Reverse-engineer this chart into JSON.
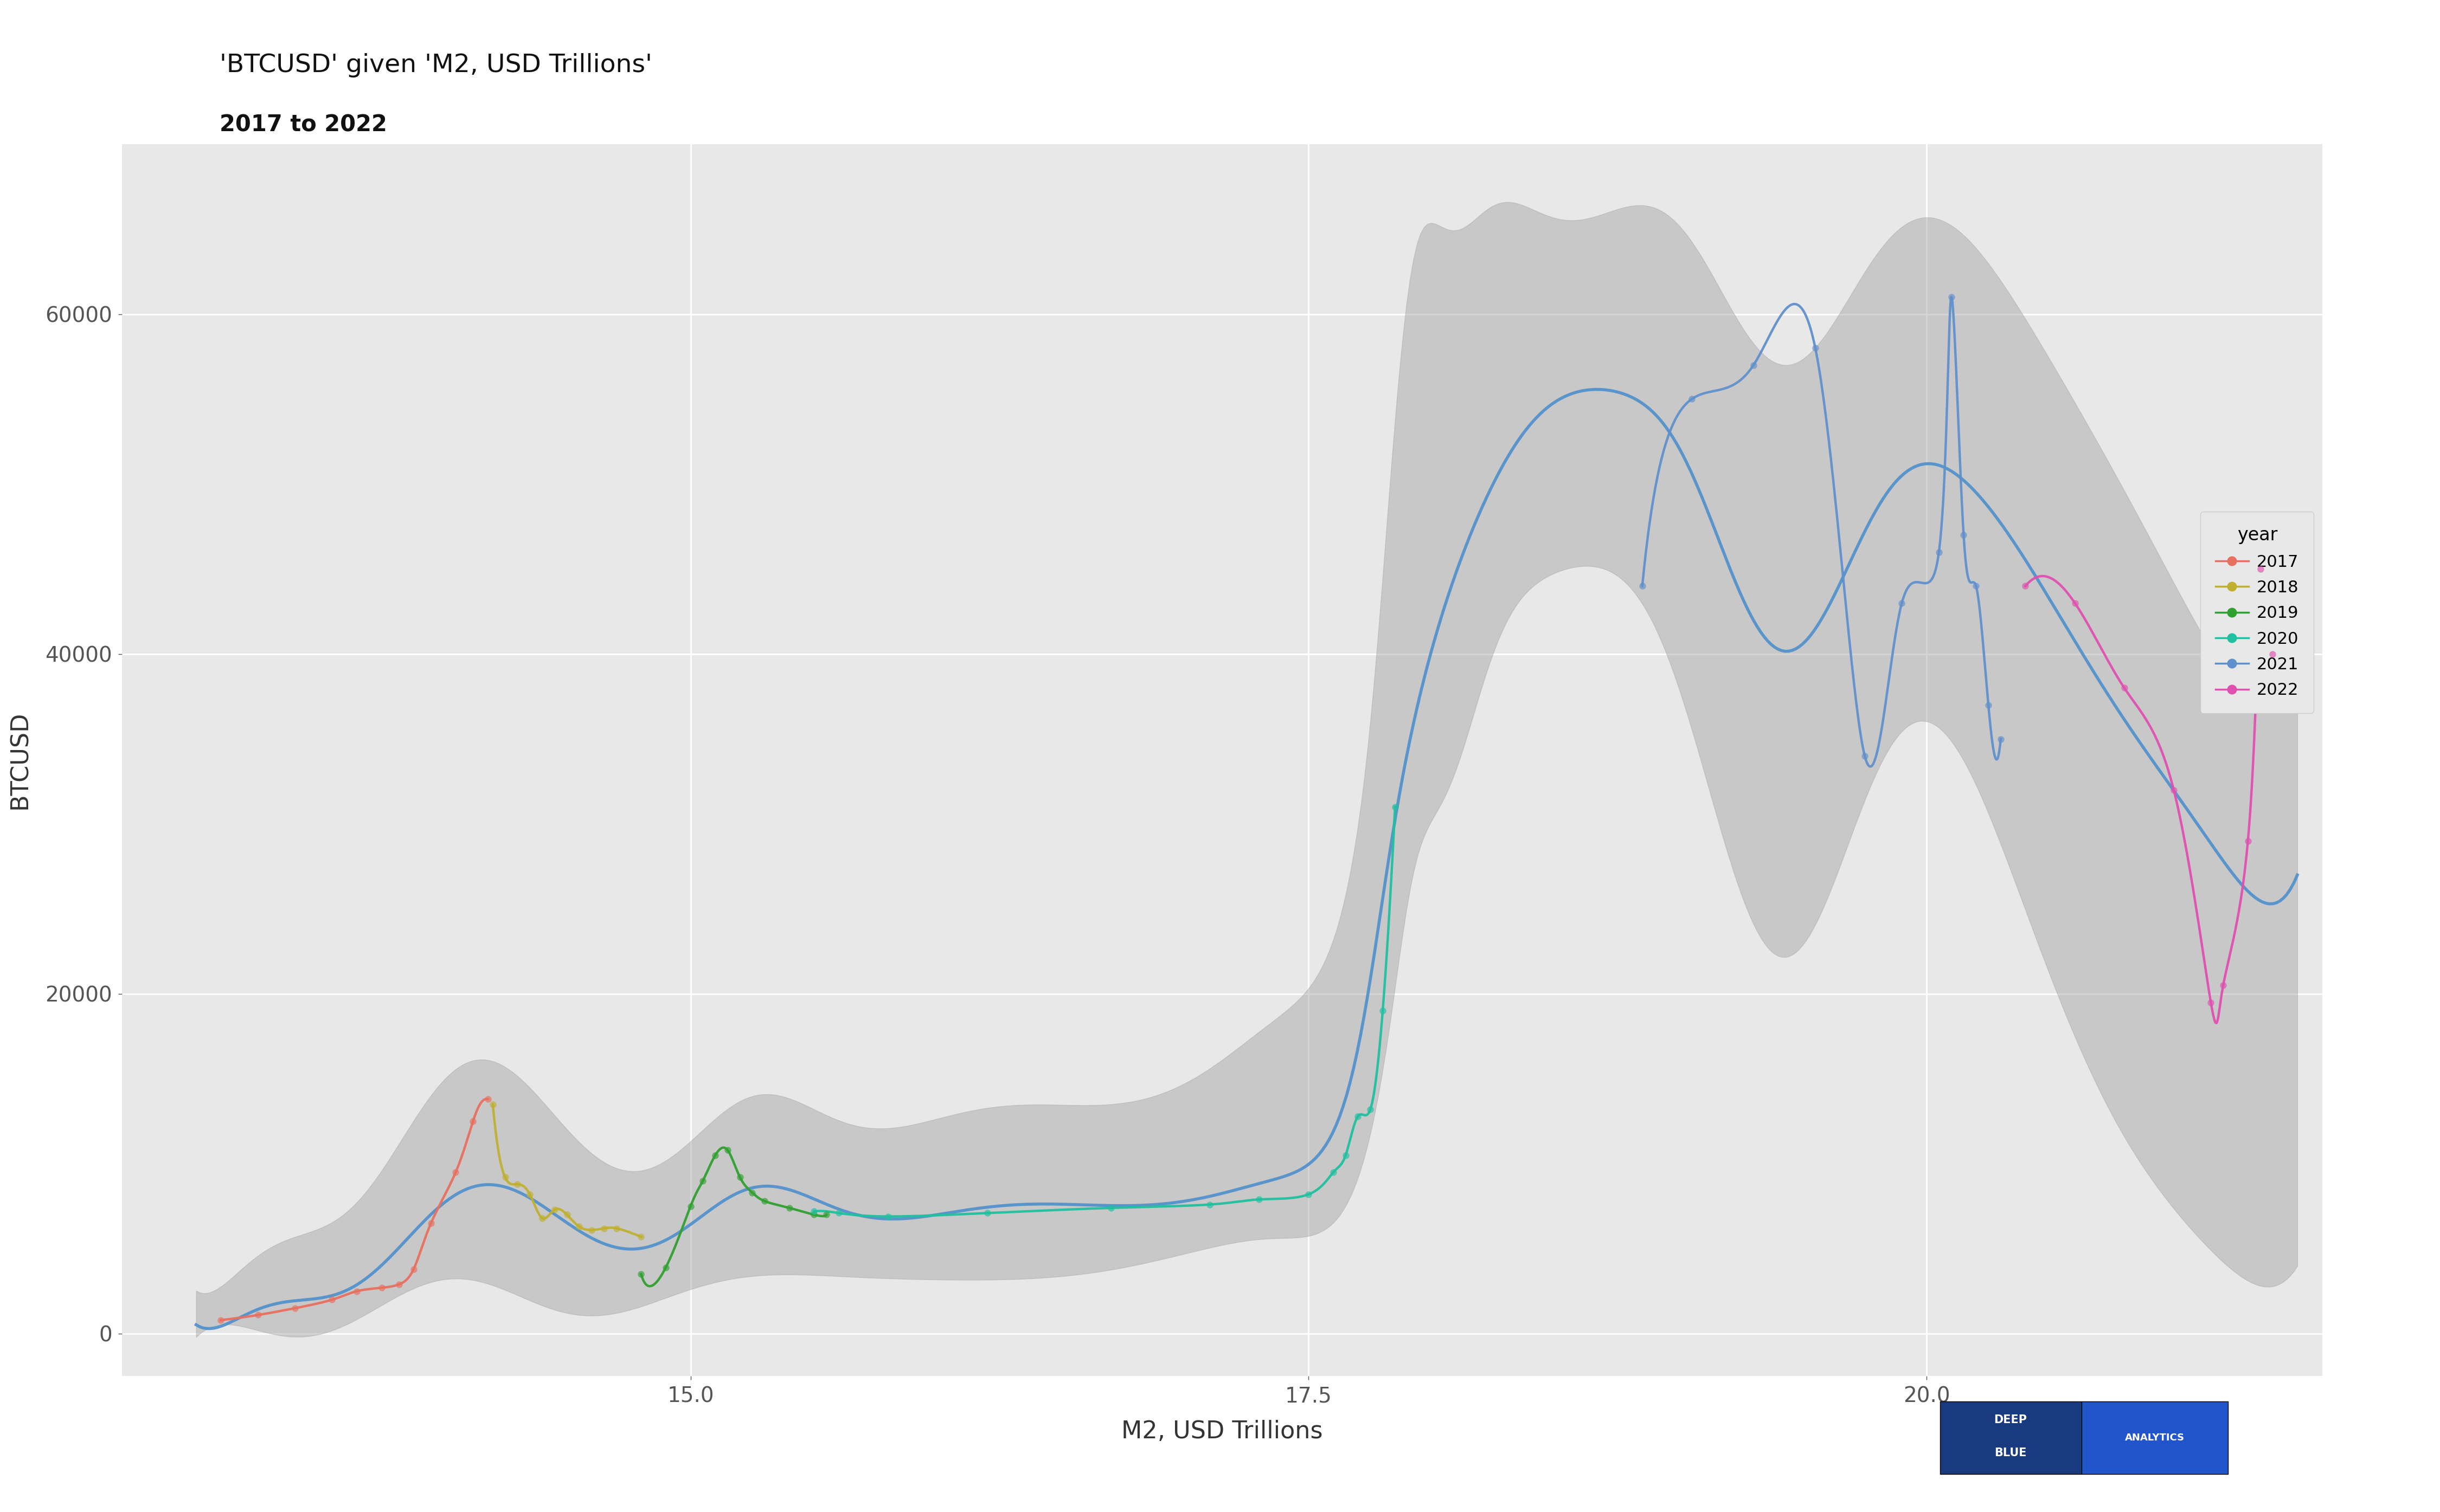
{
  "title": "'BTCUSD' given 'M2, USD Trillions'",
  "subtitle": "2017 to 2022",
  "xlabel": "M2, USD Trillions",
  "ylabel": "BTCUSD",
  "plot_bg_color": "#e8e8e8",
  "fig_bg_color": "#ffffff",
  "grid_color": "#ffffff",
  "xlim": [
    12.7,
    21.6
  ],
  "ylim": [
    -2500,
    70000
  ],
  "yticks": [
    0,
    20000,
    40000,
    60000
  ],
  "xticks": [
    15.0,
    17.5,
    20.0
  ],
  "year_colors": {
    "2017": "#e87060",
    "2018": "#c0b030",
    "2019": "#30a030",
    "2020": "#20c0a0",
    "2021": "#6090cc",
    "2022": "#e050b0"
  },
  "scatter_alpha": 0.65,
  "scatter_size": 80,
  "scatter_2021": {
    "m2": [
      18.85,
      19.05,
      19.3,
      19.55,
      19.75,
      19.9,
      20.05,
      20.1,
      20.15,
      20.2,
      20.25,
      20.3
    ],
    "btc": [
      44000,
      55000,
      57000,
      58000,
      34000,
      43000,
      46000,
      61000,
      47000,
      44000,
      37000,
      35000
    ]
  },
  "scatter_2022": {
    "m2": [
      20.4,
      20.6,
      20.8,
      21.0,
      21.15,
      21.2,
      21.3,
      21.35,
      21.4
    ],
    "btc": [
      44000,
      43000,
      38000,
      32000,
      19500,
      20500,
      29000,
      45000,
      40000
    ]
  },
  "scatter_2020": {
    "m2": [
      15.5,
      15.6,
      15.8,
      16.2,
      16.7,
      17.1,
      17.3,
      17.5,
      17.6,
      17.65,
      17.7,
      17.75,
      17.8,
      17.85
    ],
    "btc": [
      7200,
      7100,
      6900,
      7100,
      7400,
      7600,
      7900,
      8200,
      9500,
      10500,
      12800,
      13200,
      19000,
      31000
    ]
  },
  "scatter_2019": {
    "m2": [
      14.8,
      14.9,
      15.0,
      15.05,
      15.1,
      15.15,
      15.2,
      15.25,
      15.3,
      15.4,
      15.5,
      15.55
    ],
    "btc": [
      3500,
      3900,
      7500,
      9000,
      10500,
      10800,
      9200,
      8300,
      7800,
      7400,
      7000,
      7000
    ]
  },
  "scatter_2018": {
    "m2": [
      14.2,
      14.25,
      14.3,
      14.35,
      14.4,
      14.45,
      14.5,
      14.55,
      14.6,
      14.65,
      14.7,
      14.8
    ],
    "btc": [
      13500,
      9200,
      8800,
      8200,
      6800,
      7300,
      7000,
      6300,
      6100,
      6200,
      6200,
      5700
    ]
  },
  "scatter_2017": {
    "m2": [
      13.1,
      13.25,
      13.4,
      13.55,
      13.65,
      13.75,
      13.82,
      13.88,
      13.95,
      14.05,
      14.12,
      14.18
    ],
    "btc": [
      800,
      1100,
      1500,
      2000,
      2500,
      2700,
      2900,
      3800,
      6500,
      9500,
      12500,
      13800
    ]
  },
  "band_x": [
    13.0,
    13.15,
    13.3,
    13.45,
    13.6,
    13.75,
    13.9,
    14.05,
    14.2,
    14.35,
    14.5,
    14.65,
    14.8,
    14.95,
    15.1,
    15.25,
    15.4,
    15.55,
    15.7,
    15.85,
    16.0,
    16.2,
    16.4,
    16.6,
    16.8,
    17.0,
    17.2,
    17.4,
    17.6,
    17.7,
    17.75,
    17.8,
    17.85,
    17.9,
    18.0,
    18.2,
    18.4,
    18.6,
    18.8,
    19.0,
    19.2,
    19.4,
    19.6,
    19.8,
    20.0,
    20.15,
    20.3,
    20.5,
    20.7,
    20.9,
    21.1,
    21.3,
    21.5
  ],
  "band_y": [
    500,
    900,
    1400,
    2100,
    2800,
    3800,
    6000,
    8500,
    9000,
    7500,
    6500,
    6000,
    4500,
    5500,
    8000,
    9200,
    7800,
    7200,
    7100,
    7100,
    7200,
    7300,
    7400,
    7500,
    7700,
    7900,
    8300,
    9500,
    12000,
    16000,
    20000,
    27000,
    30000,
    35000,
    40000,
    48000,
    54000,
    55500,
    55000,
    52000,
    45500,
    40000,
    43000,
    48000,
    52000,
    50000,
    47000,
    44000,
    38000,
    34000,
    30000,
    26000,
    27000
  ],
  "band_lo": [
    0,
    0,
    0,
    500,
    800,
    1200,
    2000,
    3000,
    4000,
    2000,
    1500,
    1000,
    500,
    2000,
    3500,
    4500,
    3500,
    3000,
    3000,
    3000,
    3200,
    3300,
    3500,
    3700,
    4000,
    4500,
    5000,
    6000,
    7000,
    9000,
    11000,
    16000,
    20000,
    26000,
    30000,
    38000,
    44000,
    45000,
    44000,
    38000,
    28000,
    22000,
    26000,
    33000,
    36000,
    34000,
    28000,
    22000,
    14000,
    9000,
    6000,
    3000,
    4000
  ],
  "band_hi": [
    2500,
    3500,
    4800,
    6000,
    7500,
    9000,
    13000,
    16000,
    16000,
    14000,
    12000,
    11000,
    9000,
    10000,
    13500,
    14500,
    13000,
    12500,
    12500,
    12500,
    12800,
    13000,
    13200,
    13500,
    14000,
    15000,
    16000,
    19000,
    24000,
    29000,
    36000,
    45000,
    53000,
    62000,
    65000,
    66000,
    66000,
    66000,
    66000,
    65000,
    61000,
    57000,
    59000,
    63000,
    66000,
    65000,
    62000,
    57000,
    52000,
    47000,
    42000,
    37000,
    38000
  ],
  "reg_line_color": "#5090cc",
  "band_color": "#aaaaaa",
  "band_alpha": 0.5,
  "deepblue_color": "#1a3a80",
  "analytics_color": "#2255cc",
  "legend_bg": "#e8e8e8"
}
